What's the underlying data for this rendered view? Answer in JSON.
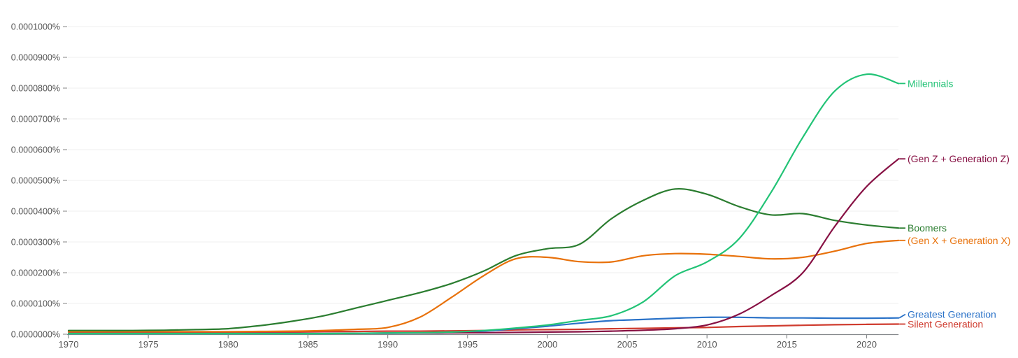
{
  "chart_data": {
    "type": "line",
    "x_axis": {
      "range": [
        1970,
        2022
      ],
      "tick_years": [
        1970,
        1975,
        1980,
        1985,
        1990,
        1995,
        2000,
        2005,
        2010,
        2015,
        2020
      ]
    },
    "y_axis": {
      "tick_labels": [
        "0.0000000%",
        "0.0000100%",
        "0.0000200%",
        "0.0000300%",
        "0.0000400%",
        "0.0000500%",
        "0.0000600%",
        "0.0000700%",
        "0.0000800%",
        "0.0000900%",
        "0.0001000%"
      ],
      "min": 0,
      "max": 10,
      "grid": true
    },
    "values_unit": "1e-5 percent (value 8.45 = 0.0000845% of corpus)",
    "x": [
      1970,
      1972,
      1974,
      1976,
      1978,
      1980,
      1982,
      1984,
      1986,
      1988,
      1990,
      1992,
      1994,
      1996,
      1998,
      2000,
      2002,
      2004,
      2006,
      2008,
      2010,
      2012,
      2014,
      2016,
      2018,
      2020,
      2022
    ],
    "series": [
      {
        "name": "Millennials",
        "color": "#22c376",
        "values": [
          0.02,
          0.02,
          0.02,
          0.02,
          0.02,
          0.02,
          0.02,
          0.02,
          0.02,
          0.03,
          0.04,
          0.05,
          0.07,
          0.12,
          0.2,
          0.3,
          0.45,
          0.6,
          1.05,
          1.9,
          2.35,
          3.1,
          4.6,
          6.4,
          7.9,
          8.45,
          8.15
        ]
      },
      {
        "name": "(Gen Z + Generation Z)",
        "color": "#871144",
        "values": [
          0.03,
          0.03,
          0.03,
          0.03,
          0.03,
          0.03,
          0.03,
          0.03,
          0.03,
          0.03,
          0.04,
          0.04,
          0.05,
          0.05,
          0.06,
          0.07,
          0.08,
          0.1,
          0.13,
          0.18,
          0.3,
          0.65,
          1.25,
          2.0,
          3.5,
          4.8,
          5.7
        ]
      },
      {
        "name": "Boomers",
        "color": "#2b7d30",
        "values": [
          0.12,
          0.12,
          0.12,
          0.13,
          0.15,
          0.18,
          0.28,
          0.42,
          0.6,
          0.85,
          1.1,
          1.35,
          1.65,
          2.05,
          2.55,
          2.78,
          2.92,
          3.75,
          4.35,
          4.72,
          4.55,
          4.15,
          3.88,
          3.92,
          3.7,
          3.55,
          3.45
        ]
      },
      {
        "name": "(Gen X + Generation X)",
        "color": "#e8710a",
        "values": [
          0.08,
          0.08,
          0.08,
          0.08,
          0.08,
          0.08,
          0.09,
          0.1,
          0.12,
          0.16,
          0.22,
          0.55,
          1.2,
          1.9,
          2.45,
          2.5,
          2.36,
          2.35,
          2.55,
          2.62,
          2.6,
          2.53,
          2.45,
          2.5,
          2.7,
          2.95,
          3.05
        ]
      },
      {
        "name": "Greatest Generation",
        "color": "#2a72c8",
        "values": [
          0.02,
          0.02,
          0.02,
          0.02,
          0.02,
          0.02,
          0.02,
          0.02,
          0.02,
          0.03,
          0.03,
          0.04,
          0.05,
          0.1,
          0.18,
          0.26,
          0.36,
          0.44,
          0.48,
          0.52,
          0.55,
          0.55,
          0.53,
          0.53,
          0.52,
          0.52,
          0.53
        ]
      },
      {
        "name": "Silent Generation",
        "color": "#cf3b2e",
        "values": [
          0.08,
          0.08,
          0.08,
          0.08,
          0.08,
          0.08,
          0.08,
          0.08,
          0.09,
          0.09,
          0.1,
          0.1,
          0.11,
          0.12,
          0.14,
          0.15,
          0.16,
          0.18,
          0.19,
          0.21,
          0.22,
          0.25,
          0.27,
          0.29,
          0.31,
          0.32,
          0.33
        ]
      }
    ],
    "style": {
      "grid_color": "#efefef",
      "axis_color": "#85888b",
      "tick_text_color": "#555555",
      "background": "#ffffff"
    }
  }
}
